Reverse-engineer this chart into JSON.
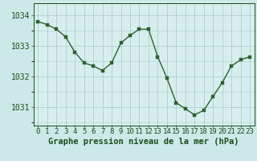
{
  "hours": [
    0,
    1,
    2,
    3,
    4,
    5,
    6,
    7,
    8,
    9,
    10,
    11,
    12,
    13,
    14,
    15,
    16,
    17,
    18,
    19,
    20,
    21,
    22,
    23
  ],
  "pressure": [
    1033.8,
    1033.7,
    1033.55,
    1033.3,
    1032.8,
    1032.45,
    1032.35,
    1032.2,
    1032.45,
    1033.1,
    1033.35,
    1033.55,
    1033.55,
    1032.65,
    1031.95,
    1031.15,
    1030.95,
    1030.75,
    1030.9,
    1031.35,
    1031.8,
    1032.35,
    1032.55,
    1032.65
  ],
  "line_color": "#2d6030",
  "marker": "s",
  "marker_size": 2.5,
  "bg_color": "#cce8e8",
  "plot_bg_color": "#d8eeee",
  "grid_color": "#aacfcf",
  "xlabel": "Graphe pression niveau de la mer (hPa)",
  "xlabel_fontsize": 7.5,
  "xlabel_color": "#1a4d1a",
  "tick_color": "#1a4d1a",
  "tick_fontsize": 6.5,
  "ytick_fontsize": 7.0,
  "yticks": [
    1031,
    1032,
    1033,
    1034
  ],
  "ylim": [
    1030.4,
    1034.4
  ],
  "xlim": [
    -0.5,
    23.5
  ]
}
